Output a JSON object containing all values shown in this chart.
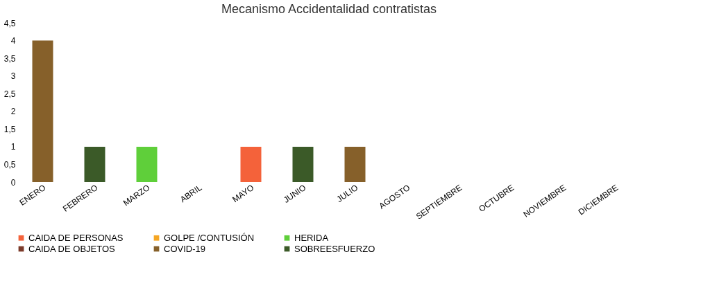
{
  "chart_data": {
    "type": "bar",
    "title": "Mecanismo Accidentalidad contratistas",
    "categories": [
      "ENERO",
      "FEBRERO",
      "MARZO",
      "ABRIL",
      "MAYO",
      "JUNIO",
      "JULIO",
      "AGOSTO",
      "SEPTIEMBRE",
      "OCTUBRE",
      "NOVIEMBRE",
      "DICIEMBRE"
    ],
    "series": [
      {
        "name": "CAIDA DE PERSONAS",
        "color": "#f4623a",
        "values": [
          null,
          null,
          null,
          null,
          1,
          null,
          null,
          null,
          null,
          null,
          null,
          null
        ]
      },
      {
        "name": "GOLPE /CONTUSIÓN",
        "color": "#f5a623",
        "values": [
          null,
          null,
          null,
          null,
          null,
          null,
          null,
          null,
          null,
          null,
          null,
          null
        ]
      },
      {
        "name": "HERIDA",
        "color": "#5fcf3a",
        "values": [
          null,
          null,
          1,
          null,
          null,
          null,
          null,
          null,
          null,
          null,
          null,
          null
        ]
      },
      {
        "name": "CAIDA DE OBJETOS",
        "color": "#7b3a2a",
        "values": [
          null,
          null,
          null,
          null,
          null,
          null,
          null,
          null,
          null,
          null,
          null,
          null
        ]
      },
      {
        "name": "COVID-19",
        "color": "#86602a",
        "values": [
          4,
          null,
          null,
          null,
          null,
          null,
          1,
          null,
          null,
          null,
          null,
          null
        ]
      },
      {
        "name": "SOBREESFUERZO",
        "color": "#3b5a28",
        "values": [
          null,
          1,
          null,
          null,
          null,
          1,
          null,
          null,
          null,
          null,
          null,
          null
        ]
      }
    ],
    "ylim": [
      0,
      4.5
    ],
    "yticks": [
      {
        "value": 0,
        "label": "0"
      },
      {
        "value": 0.5,
        "label": "0,5"
      },
      {
        "value": 1,
        "label": "1"
      },
      {
        "value": 1.5,
        "label": "1,5"
      },
      {
        "value": 2,
        "label": "2"
      },
      {
        "value": 2.5,
        "label": "2,5"
      },
      {
        "value": 3,
        "label": "3"
      },
      {
        "value": 3.5,
        "label": "3,5"
      },
      {
        "value": 4,
        "label": "4"
      },
      {
        "value": 4.5,
        "label": "4,5"
      }
    ],
    "grid": false,
    "legend": "bottom"
  }
}
